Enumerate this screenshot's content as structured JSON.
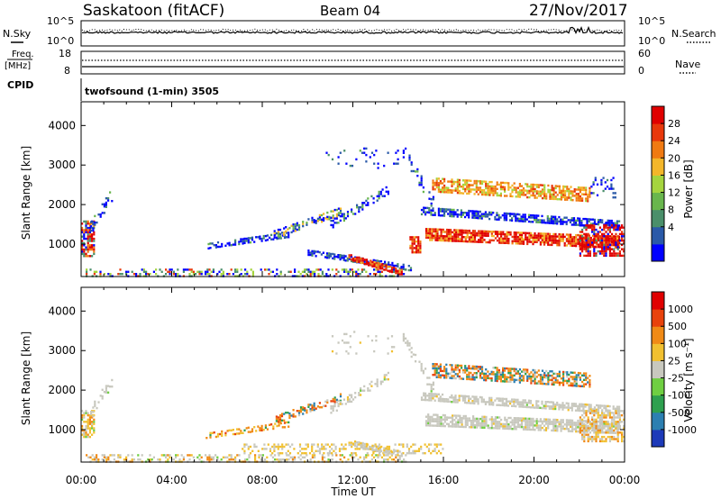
{
  "header": {
    "station": "Saskatoon (fitACF)",
    "beam": "Beam 04",
    "date": "27/Nov/2017"
  },
  "panels": {
    "nsky_label": "N.Sky",
    "nsearch_label": "N.Search",
    "freq_label_line1": "Freq.",
    "freq_label_line2": "[MHz]",
    "nave_label": "Nave",
    "cpid_label": "CPID",
    "cpid_value": "twofsound (1-min) 3505"
  },
  "chart_data": [
    {
      "type": "line",
      "name_panel": "noise",
      "left_ticks": [
        "10^5",
        "10^0"
      ],
      "right_ticks": [
        "10^5",
        "10^0"
      ],
      "note": ""
    },
    {
      "type": "line",
      "name_panel": "frequency",
      "left_ticks": [
        "18",
        "8"
      ],
      "right_ticks": [
        "60",
        "0"
      ]
    },
    {
      "type": "heatmap",
      "name_panel": "power",
      "ylabel": "Slant Range [km]",
      "yticks": [
        "4000",
        "3000",
        "2000",
        "1000"
      ],
      "ylim": [
        180,
        4600
      ],
      "xlim": [
        0,
        24
      ],
      "colorbar_label": "Power [dB]",
      "colorbar_ticks": [
        "28",
        "24",
        "20",
        "16",
        "12",
        "8",
        "4"
      ],
      "colors": [
        "#0000ff",
        "#2a59a8",
        "#4a8f6a",
        "#69b64d",
        "#a5d43e",
        "#f3b62a",
        "#f07a12",
        "#e8380b",
        "#e00000"
      ]
    },
    {
      "type": "heatmap",
      "name_panel": "velocity",
      "ylabel": "Slant Range [km]",
      "yticks": [
        "4000",
        "3000",
        "2000",
        "1000"
      ],
      "ylim": [
        180,
        4600
      ],
      "xlim": [
        0,
        24
      ],
      "xticks": [
        "00:00",
        "04:00",
        "08:00",
        "12:00",
        "16:00",
        "20:00",
        "00:00"
      ],
      "xlabel": "Time UT",
      "colorbar_label": "Velocity [m s⁻¹]",
      "colorbar_ticks": [
        "1000",
        "500",
        "100",
        "25",
        "-25",
        "-100",
        "-500",
        "-1000"
      ],
      "colors": [
        "#1d3ab9",
        "#2c7fb1",
        "#2ea04f",
        "#6fcf42",
        "#c8c8be",
        "#f1c030",
        "#f08a16",
        "#e8420c",
        "#e00000"
      ]
    }
  ]
}
